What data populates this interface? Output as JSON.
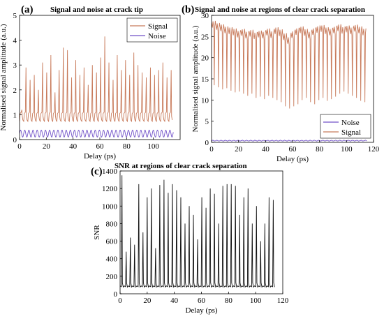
{
  "chart_data": [
    {
      "id": "a",
      "type": "line",
      "panel_label": "(a)",
      "title": "Signal and noise at crack tip",
      "xlabel": "Delay (ps)",
      "ylabel": "Normalised signal amplitude (a.u.)",
      "xlim": [
        0,
        120
      ],
      "ylim": [
        0,
        5
      ],
      "xticks": [
        0,
        20,
        40,
        60,
        80,
        100
      ],
      "yticks": [
        0,
        1,
        2,
        3,
        4,
        5
      ],
      "grid": false,
      "legend": "top-right",
      "colors": {
        "Signal": "#c87a5a",
        "Noise": "#7050c8"
      },
      "series": [
        {
          "name": "Signal",
          "kind": "pulse_train",
          "x_range": [
            0,
            115
          ],
          "period": 3.1,
          "baseline": 1.05,
          "peaks": [
            1.2,
            2.9,
            2.4,
            2.6,
            2.0,
            3.1,
            2.7,
            3.4,
            1.9,
            2.8,
            3.7,
            3.6,
            2.5,
            3.2,
            2.6,
            2.9,
            2.2,
            3.0,
            2.7,
            3.3,
            4.15,
            3.1,
            2.4,
            3.4,
            2.8,
            3.2,
            2.6,
            3.5,
            3.0,
            2.7,
            2.5,
            2.9,
            2.6,
            2.8,
            3.1,
            2.5,
            2.8
          ]
        },
        {
          "name": "Noise",
          "kind": "oscillation",
          "x_range": [
            0,
            115
          ],
          "period": 3.1,
          "min": 0.1,
          "max": 0.38
        }
      ]
    },
    {
      "id": "b",
      "type": "line",
      "panel_label": "(b)",
      "title": "Signal and noise at regions of clear crack separation",
      "xlabel": "Delay (ps)",
      "ylabel": "Normalised signal amplitude (a.u.)",
      "xlim": [
        0,
        120
      ],
      "ylim": [
        0,
        30
      ],
      "xticks": [
        0,
        20,
        40,
        60,
        80,
        100,
        120
      ],
      "yticks": [
        0,
        5,
        10,
        15,
        20,
        25,
        30
      ],
      "grid": false,
      "legend": "bottom-right",
      "colors": {
        "Noise": "#7050c8",
        "Signal": "#c87a5a"
      },
      "series": [
        {
          "name": "Noise",
          "kind": "flat",
          "x_range": [
            0,
            115
          ],
          "level": 0.4
        },
        {
          "name": "Signal",
          "kind": "dip_train",
          "x_range": [
            0,
            115
          ],
          "period": 3.1,
          "top": [
            28.3,
            27.8,
            27.5,
            27.0,
            26.8,
            26.5,
            26.0,
            26.4,
            25.8,
            26.2,
            25.6,
            26.0,
            25.8,
            26.5,
            25.9,
            26.8,
            26.3,
            25.4,
            24.5,
            25.9,
            26.6,
            27.0,
            26.4,
            25.8,
            26.6,
            27.1,
            27.3,
            26.8,
            26.5,
            27.0,
            27.5,
            26.9,
            27.2,
            26.8,
            27.4,
            27.0,
            26.5
          ],
          "troughs": [
            13.5,
            13.0,
            12.5,
            12.8,
            12.2,
            11.8,
            12.0,
            11.5,
            11.0,
            11.5,
            10.5,
            10.8,
            10.2,
            11.0,
            10.5,
            10.0,
            9.5,
            8.5,
            8.0,
            8.5,
            9.0,
            10.0,
            10.5,
            9.5,
            9.0,
            10.0,
            10.5,
            9.8,
            10.2,
            10.8,
            11.5,
            12.0,
            11.5,
            11.0,
            10.5,
            9.8,
            9.5
          ]
        }
      ]
    },
    {
      "id": "c",
      "type": "line",
      "panel_label": "(c)",
      "title": "SNR at regions of clear crack separation",
      "xlabel": "Delay (ps)",
      "ylabel": "SNR",
      "xlim": [
        0,
        120
      ],
      "ylim": [
        0,
        1400
      ],
      "xticks": [
        0,
        20,
        40,
        60,
        80,
        100,
        120
      ],
      "yticks": [
        0,
        200,
        400,
        600,
        800,
        1000,
        1200,
        1400
      ],
      "grid": false,
      "legend": "none",
      "colors": {
        "SNR": "#111111"
      },
      "series": [
        {
          "name": "SNR",
          "kind": "spike_train",
          "x_range": [
            0,
            115
          ],
          "period": 3.1,
          "baseline": 90,
          "peaks": [
            1350,
            480,
            640,
            560,
            1250,
            700,
            1100,
            1200,
            520,
            1240,
            1300,
            1150,
            1250,
            1180,
            1100,
            800,
            1000,
            900,
            620,
            1100,
            980,
            1200,
            1140,
            800,
            1230,
            1250,
            1250,
            1230,
            900,
            1100,
            1200,
            800,
            1000,
            600,
            800,
            1100,
            1070
          ]
        }
      ]
    }
  ]
}
